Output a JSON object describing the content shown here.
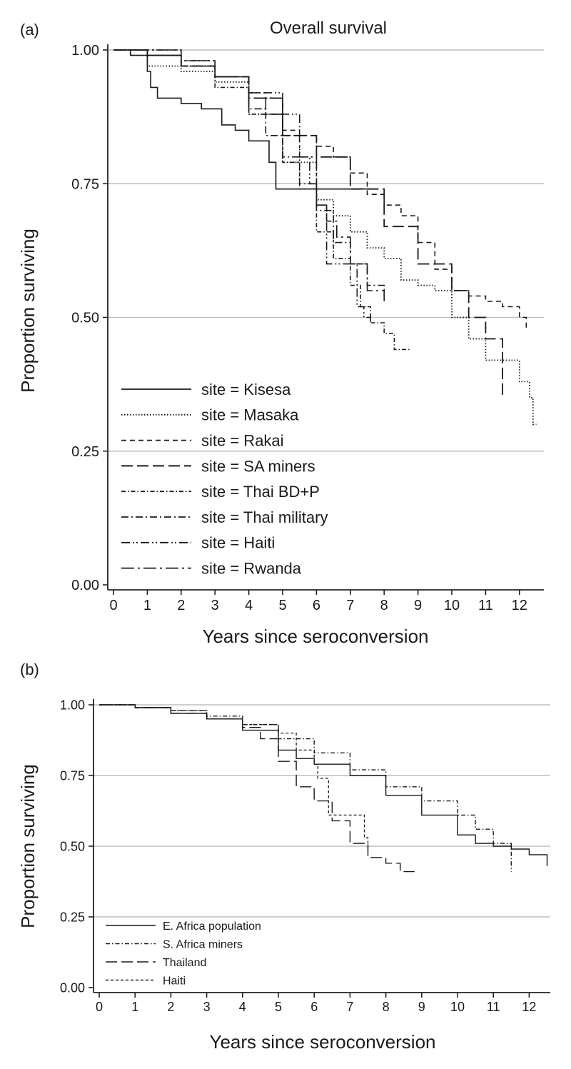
{
  "chart_data": [
    {
      "type": "line",
      "subtype": "kaplan-meier step",
      "panel_label": "(a)",
      "title": "Overall survival",
      "xlabel": "Years since seroconversion",
      "ylabel": "Proportion surviving",
      "xlim": [
        0,
        12.6
      ],
      "ylim": [
        0,
        1
      ],
      "x_ticks": [
        "0",
        "1",
        "2",
        "3",
        "4",
        "5",
        "6",
        "7",
        "8",
        "9",
        "10",
        "11",
        "12"
      ],
      "y_ticks": [
        "0.00",
        "0.25",
        "0.50",
        "0.75",
        "1.00"
      ],
      "grid": "horizontal",
      "legend_position": "bottom-left",
      "series": [
        {
          "name": "site = Kisesa",
          "dash": "solid",
          "width": 1.6,
          "x": [
            0,
            0.5,
            1,
            1.1,
            1.3,
            2,
            2.6,
            3.2,
            3.6,
            4,
            4.6,
            4.8,
            5.6,
            7.5
          ],
          "y": [
            1,
            0.99,
            0.96,
            0.93,
            0.91,
            0.9,
            0.89,
            0.86,
            0.85,
            0.83,
            0.79,
            0.74,
            0.74,
            0.74
          ]
        },
        {
          "name": "site = Masaka",
          "dash": "dotted",
          "width": 1.8,
          "x": [
            0,
            0.5,
            1,
            2,
            3,
            4,
            5,
            6,
            6.5,
            7,
            7.5,
            8,
            8.5,
            9,
            9.5,
            10,
            10.5,
            11,
            11.5,
            12,
            12.3,
            12.4,
            12.5
          ],
          "y": [
            1,
            0.99,
            0.97,
            0.96,
            0.94,
            0.88,
            0.79,
            0.72,
            0.69,
            0.66,
            0.63,
            0.61,
            0.57,
            0.56,
            0.55,
            0.5,
            0.46,
            0.42,
            0.42,
            0.38,
            0.35,
            0.3,
            0.3
          ]
        },
        {
          "name": "site = Rakai",
          "dash": "dashed",
          "width": 1.6,
          "x": [
            0,
            1,
            2,
            3,
            4,
            5,
            5.5,
            6,
            6.5,
            7,
            7.5,
            8,
            8.5,
            9,
            9.5,
            10,
            10.5,
            11,
            11.5,
            12,
            12.2
          ],
          "y": [
            1,
            0.99,
            0.97,
            0.95,
            0.91,
            0.85,
            0.84,
            0.82,
            0.8,
            0.77,
            0.73,
            0.71,
            0.69,
            0.64,
            0.59,
            0.55,
            0.54,
            0.53,
            0.52,
            0.5,
            0.48
          ]
        },
        {
          "name": "site = SA miners",
          "dash": "longdash",
          "width": 1.8,
          "x": [
            0,
            1,
            2,
            3,
            4,
            5,
            6,
            7,
            8,
            9,
            10,
            10.5,
            11,
            11.5,
            11.5
          ],
          "y": [
            1,
            0.99,
            0.97,
            0.95,
            0.91,
            0.84,
            0.8,
            0.74,
            0.67,
            0.6,
            0.55,
            0.5,
            0.46,
            0.43,
            0.35
          ]
        },
        {
          "name": "site = Thai BD+P",
          "dash": "dashdot",
          "width": 1.6,
          "x": [
            0,
            1,
            2,
            3,
            4,
            5,
            5.5,
            6,
            6.5,
            7,
            7.3,
            7.6,
            8,
            8.3,
            8.8
          ],
          "y": [
            1,
            0.99,
            0.97,
            0.93,
            0.88,
            0.79,
            0.74,
            0.66,
            0.61,
            0.56,
            0.52,
            0.49,
            0.47,
            0.44,
            0.44
          ]
        },
        {
          "name": "site = Thai military",
          "dash": "dashdotlong",
          "width": 1.6,
          "x": [
            0,
            1,
            2,
            3,
            4,
            4.5,
            5,
            5.5,
            6,
            6.5,
            7,
            7.5,
            8
          ],
          "y": [
            1,
            1,
            0.98,
            0.95,
            0.89,
            0.84,
            0.8,
            0.75,
            0.7,
            0.64,
            0.6,
            0.56,
            0.54
          ]
        },
        {
          "name": "site = Haiti",
          "dash": "dashdotdot",
          "width": 1.6,
          "x": [
            0,
            1,
            2,
            3,
            4,
            5,
            5.5,
            5.8,
            6,
            6.3,
            6.8,
            7.2,
            7.4,
            7.6
          ],
          "y": [
            1,
            0.99,
            0.97,
            0.95,
            0.92,
            0.88,
            0.8,
            0.75,
            0.71,
            0.6,
            0.6,
            0.52,
            0.5,
            0.49
          ]
        },
        {
          "name": "site = Rwanda",
          "dash": "longdashdot",
          "width": 1.6,
          "x": [
            0,
            1,
            2,
            3,
            4,
            4.5,
            5,
            5.5,
            6,
            6.3,
            6.6,
            7,
            7.5,
            8
          ],
          "y": [
            1,
            1,
            0.98,
            0.95,
            0.92,
            0.88,
            0.84,
            0.8,
            0.71,
            0.68,
            0.65,
            0.6,
            0.55,
            0.53
          ]
        }
      ]
    },
    {
      "type": "line",
      "subtype": "kaplan-meier step",
      "panel_label": "(b)",
      "xlabel": "Years since seroconversion",
      "ylabel": "Proportion surviving",
      "xlim": [
        0,
        12.6
      ],
      "ylim": [
        0,
        1
      ],
      "x_ticks": [
        "0",
        "1",
        "2",
        "3",
        "4",
        "5",
        "6",
        "7",
        "8",
        "9",
        "10",
        "11",
        "12"
      ],
      "y_ticks": [
        "0.00",
        "0.25",
        "0.50",
        "0.75",
        "1.00"
      ],
      "grid": "horizontal",
      "legend_position": "bottom-left",
      "series": [
        {
          "name": "E. Africa population",
          "dash": "solid",
          "width": 1.4,
          "x": [
            0,
            1,
            2,
            3,
            4,
            5,
            5.5,
            6,
            7,
            8,
            9,
            10,
            10.5,
            11,
            11.5,
            12,
            12.5
          ],
          "y": [
            1,
            0.99,
            0.97,
            0.95,
            0.91,
            0.84,
            0.81,
            0.79,
            0.75,
            0.68,
            0.61,
            0.54,
            0.51,
            0.5,
            0.49,
            0.47,
            0.43
          ]
        },
        {
          "name": "S. Africa miners",
          "dash": "dashdot",
          "width": 1.4,
          "x": [
            0,
            1,
            2,
            3,
            4,
            5,
            6,
            7,
            8,
            9,
            10,
            10.5,
            11,
            11.5,
            11.5
          ],
          "y": [
            1,
            0.99,
            0.98,
            0.96,
            0.93,
            0.88,
            0.83,
            0.77,
            0.71,
            0.66,
            0.61,
            0.56,
            0.51,
            0.47,
            0.41
          ]
        },
        {
          "name": "Thailand",
          "dash": "longdash",
          "width": 1.4,
          "x": [
            0,
            1,
            2,
            3,
            4,
            4.5,
            5,
            5.5,
            6,
            6.5,
            7,
            7.5,
            8,
            8.4,
            8.8
          ],
          "y": [
            1,
            0.99,
            0.97,
            0.95,
            0.92,
            0.88,
            0.8,
            0.71,
            0.66,
            0.59,
            0.51,
            0.46,
            0.44,
            0.41,
            0.41
          ]
        },
        {
          "name": "Haiti",
          "dash": "shortdash",
          "width": 1.3,
          "x": [
            0,
            1,
            2,
            3,
            4,
            4.6,
            5,
            5.5,
            6,
            6.1,
            6.4,
            6.8,
            7.0,
            7.4,
            7.5
          ],
          "y": [
            1,
            0.99,
            0.98,
            0.95,
            0.93,
            0.93,
            0.9,
            0.84,
            0.79,
            0.74,
            0.61,
            0.61,
            0.61,
            0.53,
            0.49
          ]
        }
      ]
    }
  ]
}
